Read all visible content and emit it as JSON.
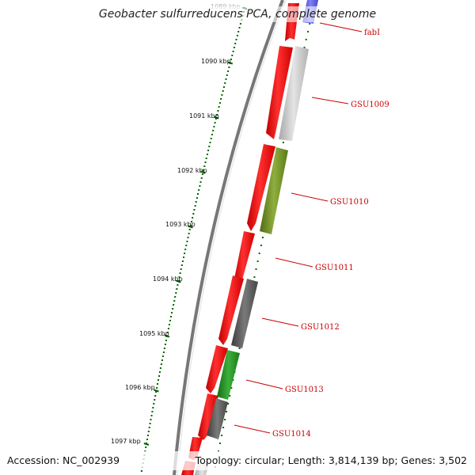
{
  "title": "Geobacter sulfurreducens PCA, complete genome",
  "accession": "Accession: NC_002939",
  "topology": "Topology: circular; Length: 3,814,139 bp; Genes: 3,502",
  "ruler_ticks": [
    "1089 kbp",
    "1090 kbp",
    "1091 kbp",
    "1092 kbp",
    "1093 kbp",
    "1094 kbp",
    "1095 kbp",
    "1096 kbp",
    "1097 kbp"
  ],
  "gene_labels": [
    "fabI",
    "GSU1009",
    "GSU1010",
    "GSU1011",
    "GSU1012",
    "GSU1013",
    "GSU1014"
  ],
  "colors": {
    "cds": "#ff0000",
    "backbone": "#777777",
    "ruler": "#006600",
    "label": "#cc0000",
    "fabI": "#6a5acd",
    "GSU1009": "#c8c8c8",
    "GSU1010": "#6b8e23",
    "GSU1012": "#555555",
    "GSU1013": "#228b22",
    "GSU1014": "#555555"
  }
}
